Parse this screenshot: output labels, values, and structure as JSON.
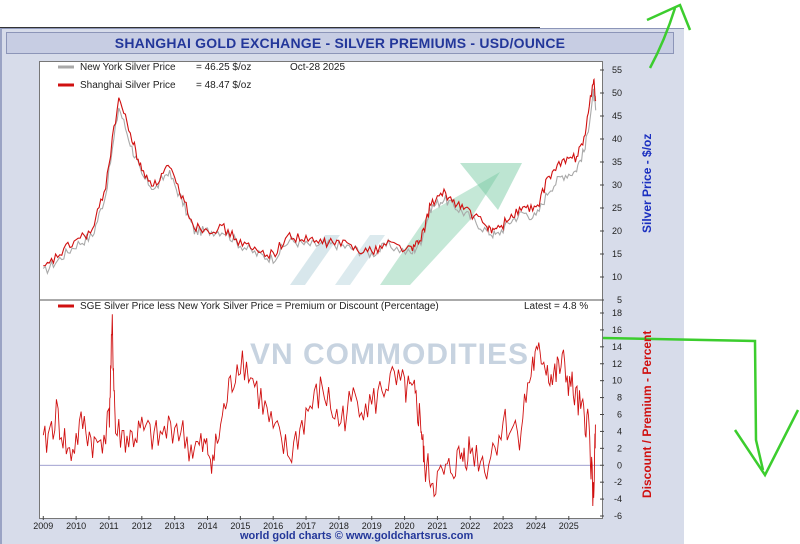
{
  "chart_data": [
    {
      "type": "line",
      "title": "SHANGHAI GOLD EXCHANGE - SILVER PREMIUMS - USD/OUNCE",
      "ylabel": "Silver Price - $/oz",
      "ylim": [
        5,
        55
      ],
      "yticks": [
        5,
        10,
        15,
        20,
        25,
        30,
        35,
        40,
        45,
        50,
        55
      ],
      "xticks": [
        "2009",
        "2010",
        "2011",
        "2012",
        "2013",
        "2014",
        "2015",
        "2016",
        "2017",
        "2018",
        "2019",
        "2020",
        "2021",
        "2022",
        "2023",
        "2024",
        "2025"
      ],
      "legend": [
        {
          "label": "New York Silver Price",
          "value_text": "= 46.25 $/oz",
          "color": "#a9a9a9"
        },
        {
          "label": "Shanghai Silver Price",
          "value_text": "= 48.47 $/oz",
          "color": "#d01010"
        }
      ],
      "date_text": "Oct-28  2025",
      "series": [
        {
          "name": "New York Silver Price",
          "color": "#a9a9a9",
          "x": [
            2009.0,
            2009.5,
            2010.0,
            2010.5,
            2010.9,
            2011.3,
            2011.7,
            2012.0,
            2012.4,
            2012.8,
            2013.2,
            2013.6,
            2014.0,
            2014.5,
            2015.0,
            2015.5,
            2016.0,
            2016.5,
            2017.0,
            2017.5,
            2018.0,
            2018.5,
            2019.0,
            2019.5,
            2020.2,
            2020.5,
            2020.8,
            2021.2,
            2021.6,
            2022.0,
            2022.5,
            2022.8,
            2023.2,
            2023.6,
            2024.0,
            2024.4,
            2024.8,
            2025.2,
            2025.5,
            2025.75,
            2025.82
          ],
          "y": [
            11,
            14,
            17,
            19,
            28,
            47,
            38,
            32,
            29,
            33,
            27,
            20,
            20,
            20,
            17,
            15,
            14,
            18,
            17,
            17,
            17,
            16,
            15,
            17,
            15,
            18,
            25,
            27,
            25,
            23,
            20,
            19,
            22,
            24,
            23,
            29,
            32,
            33,
            38,
            50,
            46.25
          ]
        },
        {
          "name": "Shanghai Silver Price",
          "color": "#d01010",
          "x": [
            2009.0,
            2009.5,
            2010.0,
            2010.5,
            2010.9,
            2011.3,
            2011.7,
            2012.0,
            2012.4,
            2012.8,
            2013.2,
            2013.6,
            2014.0,
            2014.5,
            2015.0,
            2015.5,
            2016.0,
            2016.5,
            2017.0,
            2017.5,
            2018.0,
            2018.5,
            2019.0,
            2019.5,
            2020.2,
            2020.5,
            2020.8,
            2021.2,
            2021.6,
            2022.0,
            2022.5,
            2022.8,
            2023.2,
            2023.6,
            2024.0,
            2024.4,
            2024.8,
            2025.2,
            2025.5,
            2025.75,
            2025.82
          ],
          "y": [
            11.5,
            15,
            18,
            20,
            30,
            49,
            40,
            33,
            30,
            34,
            28,
            21,
            20.5,
            20.5,
            17.5,
            15.5,
            15,
            19,
            18,
            17.5,
            17.5,
            16.5,
            15.5,
            17.5,
            16,
            18,
            26,
            28,
            26,
            24,
            21,
            20,
            23,
            25,
            24.5,
            32,
            35,
            36,
            41,
            53,
            48.47
          ]
        }
      ]
    },
    {
      "type": "line",
      "title": "SGE Silver Price less New York Silver Price = Premium or Discount (Percentage)",
      "ylabel": "Discount / Premium - Percent",
      "ylim": [
        -6,
        18
      ],
      "yticks": [
        -6,
        -4,
        -2,
        0,
        2,
        4,
        6,
        8,
        10,
        12,
        14,
        16,
        18
      ],
      "latest_text": "Latest = 4.8 %",
      "series": [
        {
          "name": "Premium or Discount",
          "color": "#d01010",
          "x": [
            2009.0,
            2009.4,
            2009.8,
            2010.2,
            2010.6,
            2011.0,
            2011.1,
            2011.2,
            2011.6,
            2012.0,
            2012.5,
            2013.0,
            2013.5,
            2013.9,
            2014.2,
            2014.6,
            2015.0,
            2015.5,
            2016.0,
            2016.5,
            2017.0,
            2017.5,
            2018.0,
            2018.5,
            2019.0,
            2019.5,
            2020.0,
            2020.3,
            2020.5,
            2020.6,
            2020.9,
            2021.3,
            2021.7,
            2022.0,
            2022.5,
            2023.0,
            2023.5,
            2023.9,
            2024.2,
            2024.5,
            2024.8,
            2025.1,
            2025.4,
            2025.6,
            2025.75,
            2025.82
          ],
          "y": [
            2,
            6,
            1,
            5,
            2,
            5,
            16,
            4,
            3,
            4,
            3,
            5,
            2,
            2,
            1,
            8,
            13,
            9,
            4,
            1,
            6,
            9,
            5,
            8,
            7,
            10,
            9,
            8,
            5,
            0,
            -2,
            -1,
            1,
            2,
            0,
            5,
            4,
            12,
            13,
            10,
            12,
            9,
            6,
            5,
            -4,
            4.8
          ]
        }
      ]
    }
  ],
  "watermark": "VN COMMODITIES",
  "footer": "world gold charts © www.goldchartsrus.com"
}
